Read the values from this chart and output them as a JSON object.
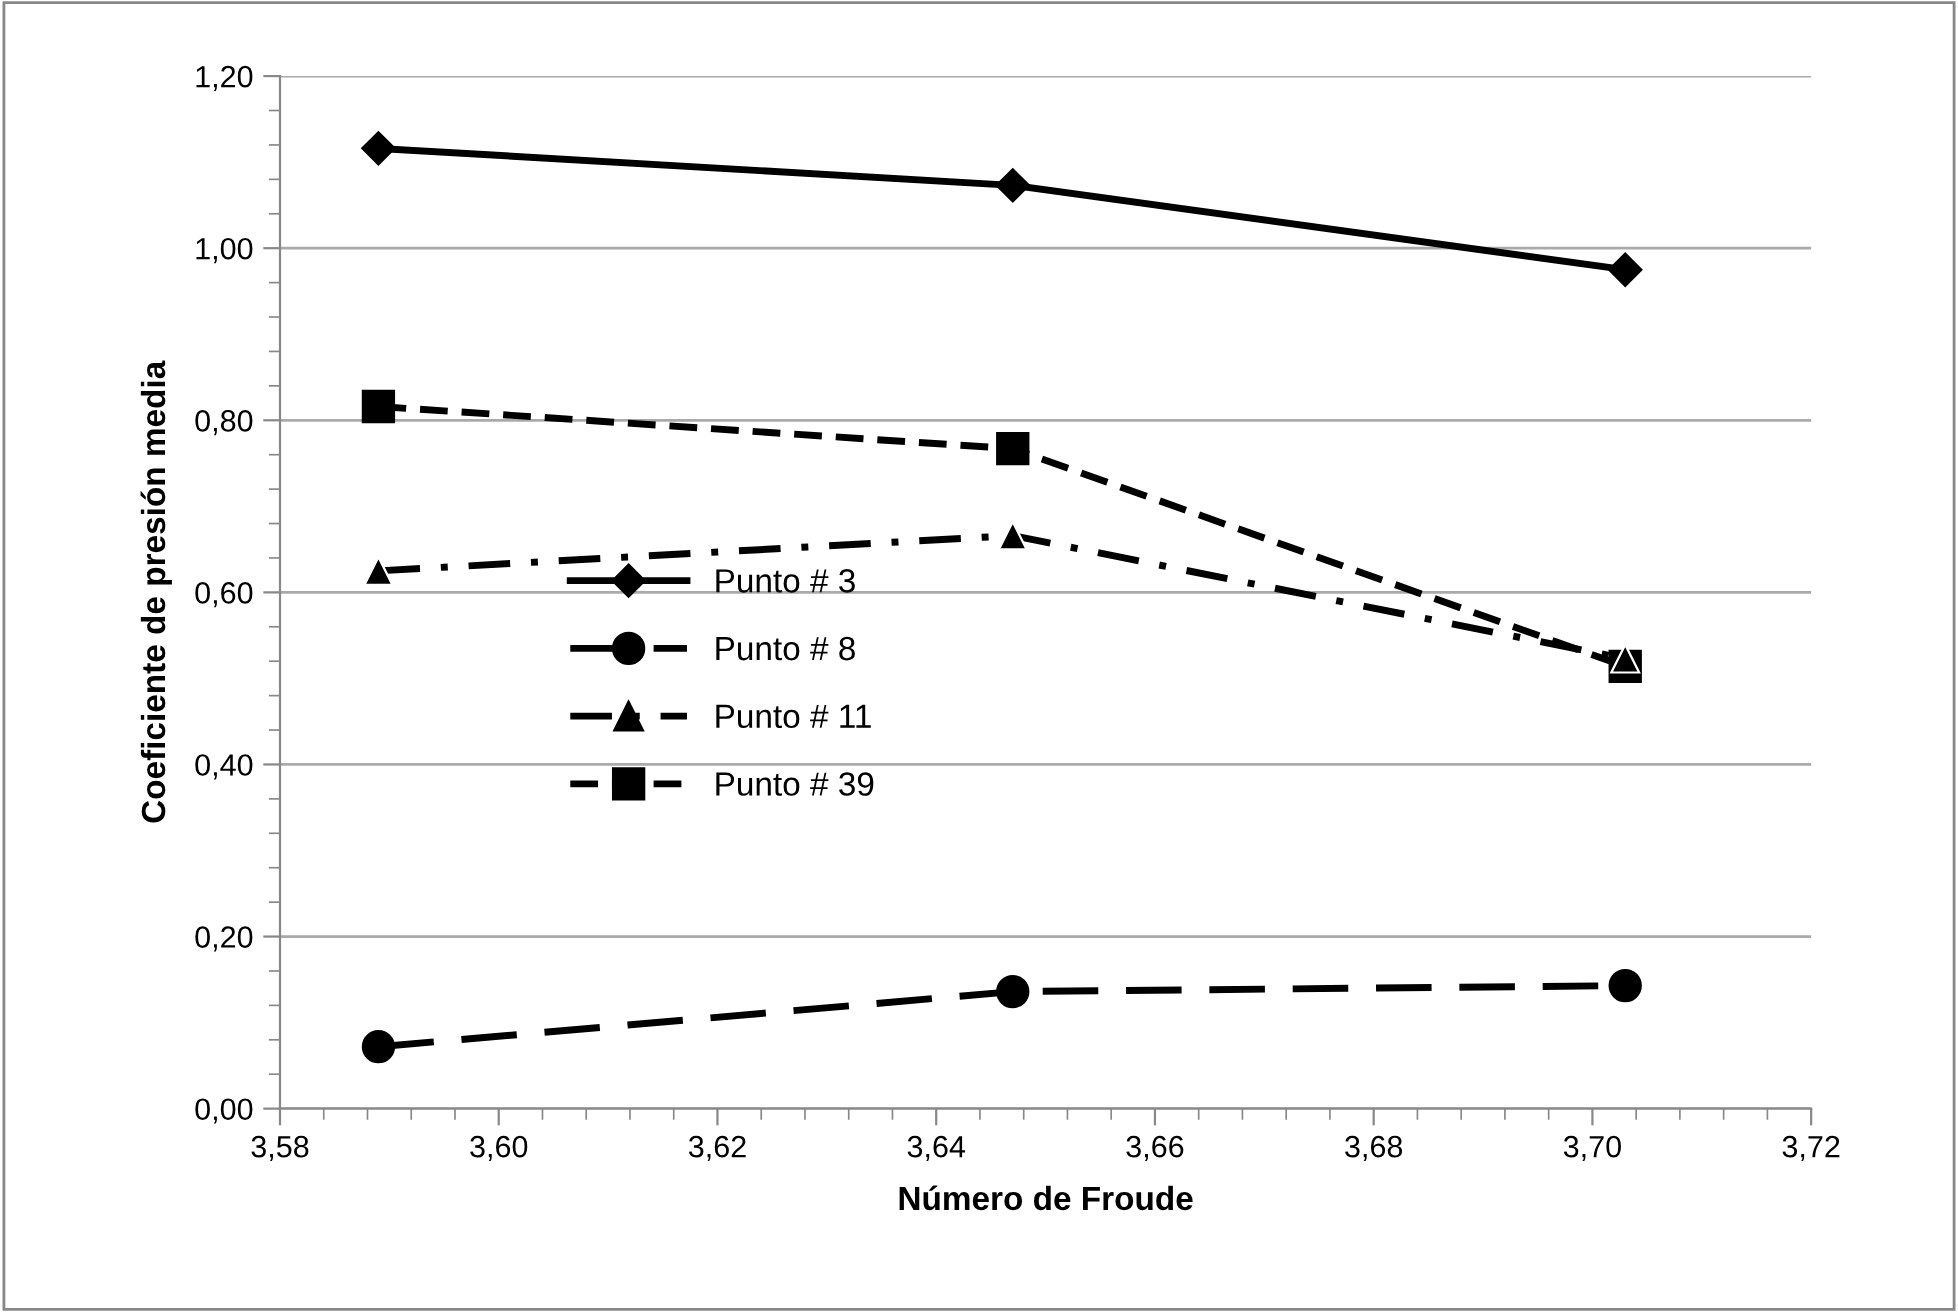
{
  "chart_data": {
    "type": "line",
    "xlabel": "Número de Froude",
    "ylabel": "Coeficiente de presión media",
    "x": [
      3.589,
      3.647,
      3.703
    ],
    "series": [
      {
        "name": "Punto # 3",
        "color": "#000000",
        "values": [
          1.116,
          1.073,
          0.975
        ],
        "marker": "diamond",
        "line_style": "solid"
      },
      {
        "name": "Punto # 8",
        "color": "#000000",
        "values": [
          0.072,
          0.136,
          0.143
        ],
        "marker": "circle",
        "line_style": "dashed"
      },
      {
        "name": "Punto # 11",
        "color": "#000000",
        "values": [
          0.625,
          0.666,
          0.523
        ],
        "marker": "triangle",
        "line_style": "dashdot"
      },
      {
        "name": "Punto # 39",
        "color": "#000000",
        "values": [
          0.816,
          0.767,
          0.514
        ],
        "marker": "square",
        "line_style": "dashed"
      }
    ],
    "xlim": [
      3.58,
      3.72
    ],
    "xticks": [
      {
        "value": 3.58,
        "label": "3,58"
      },
      {
        "value": 3.6,
        "label": "3,60"
      },
      {
        "value": 3.62,
        "label": "3,62"
      },
      {
        "value": 3.64,
        "label": "3,64"
      },
      {
        "value": 3.66,
        "label": "3,66"
      },
      {
        "value": 3.68,
        "label": "3,68"
      },
      {
        "value": 3.7,
        "label": "3,70"
      },
      {
        "value": 3.72,
        "label": "3,72"
      }
    ],
    "ylim": [
      0,
      1.2
    ],
    "yticks": [
      {
        "value": 0,
        "label": "0,00"
      },
      {
        "value": 0.2,
        "label": "0,20"
      },
      {
        "value": 0.4,
        "label": "0,40"
      },
      {
        "value": 0.6,
        "label": "0,60"
      },
      {
        "value": 0.8,
        "label": "0,80"
      },
      {
        "value": 1.0,
        "label": "1,00"
      },
      {
        "value": 1.2,
        "label": "1,20"
      }
    ],
    "grid": "y",
    "legend": "center left"
  }
}
